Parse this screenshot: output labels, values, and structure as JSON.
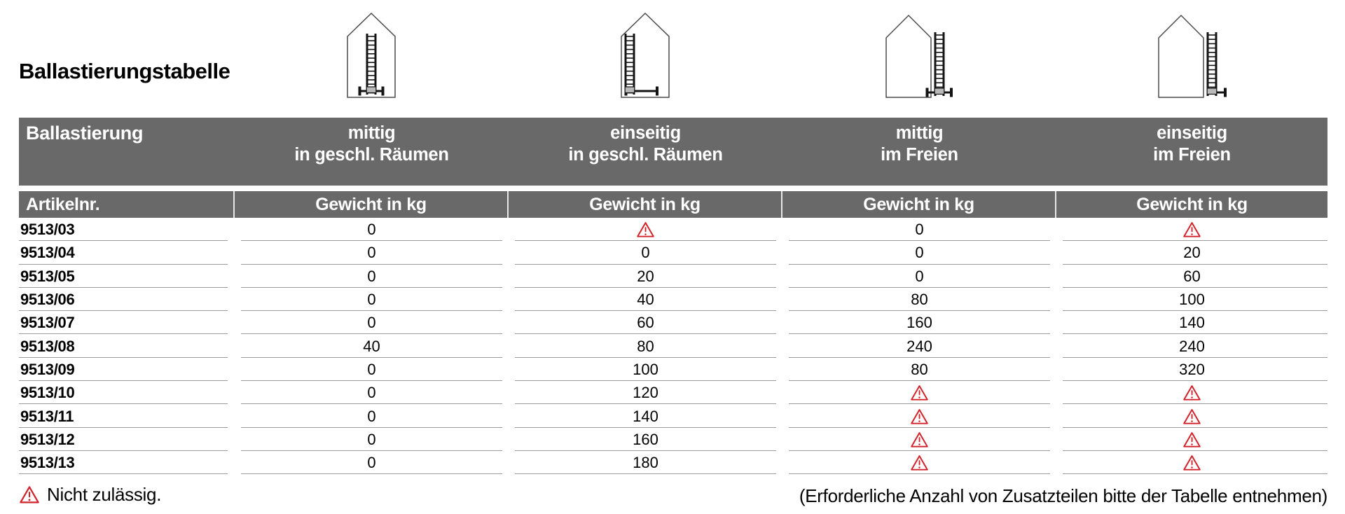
{
  "page": {
    "title": "Ballastierungstabelle",
    "footnote": {
      "left_icon": "warning-triangle",
      "left_text": "Nicht zulässig.",
      "right_text": "(Erforderliche Anzahl von Zusatzteilen bitte der Tabelle entnehmen)"
    }
  },
  "table": {
    "corner_label": "Ballastierung",
    "columns": [
      {
        "line1": "mittig",
        "line2": "in geschl. Räumen",
        "icon": "house-ladder-middle-indoor"
      },
      {
        "line1": "einseitig",
        "line2": "in geschl. Räumen",
        "icon": "house-ladder-side-indoor"
      },
      {
        "line1": "mittig",
        "line2": "im Freien",
        "icon": "house-ladder-middle-outdoor"
      },
      {
        "line1": "einseitig",
        "line2": "im Freien",
        "icon": "house-ladder-side-outdoor"
      }
    ],
    "subheader": {
      "article_label": "Artikelnr.",
      "weight_label": "Gewicht in kg"
    },
    "warning_symbol_meaning": "Nicht zulässig.",
    "rows": [
      {
        "article": "9513/03",
        "values": [
          "0",
          "warning",
          "0",
          "warning"
        ]
      },
      {
        "article": "9513/04",
        "values": [
          "0",
          "0",
          "0",
          "20"
        ]
      },
      {
        "article": "9513/05",
        "values": [
          "0",
          "20",
          "0",
          "60"
        ]
      },
      {
        "article": "9513/06",
        "values": [
          "0",
          "40",
          "80",
          "100"
        ]
      },
      {
        "article": "9513/07",
        "values": [
          "0",
          "60",
          "160",
          "140"
        ]
      },
      {
        "article": "9513/08",
        "values": [
          "40",
          "80",
          "240",
          "240"
        ]
      },
      {
        "article": "9513/09",
        "values": [
          "0",
          "100",
          "80",
          "320"
        ]
      },
      {
        "article": "9513/10",
        "values": [
          "0",
          "120",
          "warning",
          "warning"
        ]
      },
      {
        "article": "9513/11",
        "values": [
          "0",
          "140",
          "warning",
          "warning"
        ]
      },
      {
        "article": "9513/12",
        "values": [
          "0",
          "160",
          "warning",
          "warning"
        ]
      },
      {
        "article": "9513/13",
        "values": [
          "0",
          "180",
          "warning",
          "warning"
        ]
      }
    ],
    "colors": {
      "header_bg": "#696969",
      "header_text": "#ffffff",
      "warning_red": "#d2232a",
      "row_line": "#9a9a9a",
      "body_text": "#000000"
    }
  }
}
